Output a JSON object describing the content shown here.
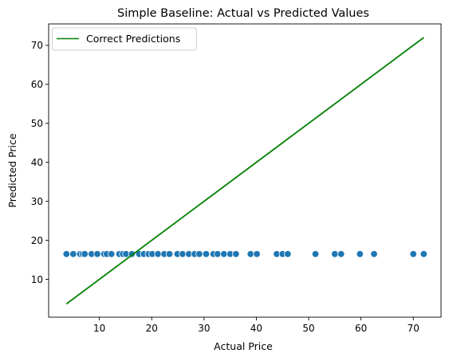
{
  "chart_data": {
    "type": "scatter",
    "title": "Simple Baseline: Actual vs Predicted Values",
    "xlabel": "Actual Price",
    "ylabel": "Predicted Price",
    "xlim": [
      0.3,
      75.3
    ],
    "ylim": [
      0.3,
      75.5
    ],
    "xticks": [
      10,
      20,
      30,
      40,
      50,
      60,
      70
    ],
    "yticks": [
      10,
      20,
      30,
      40,
      50,
      60,
      70
    ],
    "grid": false,
    "legend_position": "top-left",
    "scatter_color": "#1f77b4",
    "line_color": "#008000",
    "series": [
      {
        "kind": "scatter",
        "x": [
          3.7,
          5.0,
          6.3,
          6.8,
          7.2,
          8.5,
          9.6,
          10.9,
          11.4,
          12.3,
          13.8,
          14.5,
          15.1,
          16.2,
          17.6,
          18.5,
          19.4,
          20.1,
          21.2,
          22.4,
          23.4,
          24.9,
          25.9,
          27.1,
          28.2,
          29.1,
          30.4,
          31.8,
          32.6,
          33.8,
          35.0,
          36.1,
          38.9,
          40.1,
          43.9,
          45.0,
          46.0,
          51.3,
          55.0,
          56.2,
          59.8,
          62.5,
          70.0,
          72.0
        ],
        "y": [
          16.5,
          16.5,
          16.5,
          16.5,
          16.5,
          16.5,
          16.5,
          16.5,
          16.5,
          16.5,
          16.5,
          16.5,
          16.5,
          16.5,
          16.5,
          16.5,
          16.5,
          16.5,
          16.5,
          16.5,
          16.5,
          16.5,
          16.5,
          16.5,
          16.5,
          16.5,
          16.5,
          16.5,
          16.5,
          16.5,
          16.5,
          16.5,
          16.5,
          16.5,
          16.5,
          16.5,
          16.5,
          16.5,
          16.5,
          16.5,
          16.5,
          16.5,
          16.5,
          16.5
        ]
      },
      {
        "kind": "line",
        "name": "Correct Predictions",
        "x": [
          3.7,
          72.0
        ],
        "y": [
          3.7,
          72.0
        ]
      }
    ]
  }
}
